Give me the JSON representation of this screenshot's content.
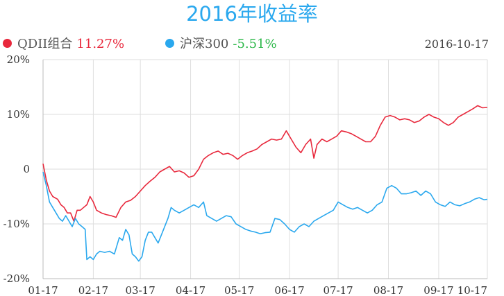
{
  "title": "2016年收益率",
  "date": "2016-10-17",
  "legend": {
    "qdii": {
      "name": "QDII组合",
      "value": "11.27%",
      "color": "#e8283c"
    },
    "hs300": {
      "name": "沪深300",
      "value": "-5.51%",
      "color": "#2aa8ee",
      "value_color": "#2db84a"
    }
  },
  "chart_data": {
    "type": "line",
    "title": "2016年收益率",
    "x_ticks": [
      "01-17",
      "02-17",
      "03-17",
      "04-17",
      "05-17",
      "06-17",
      "07-17",
      "08-17",
      "09-17",
      "10-17"
    ],
    "y_ticks": [
      "20%",
      "10%",
      "0",
      "-10%",
      "-20%"
    ],
    "ylim": [
      -20,
      20
    ],
    "x_range_days": [
      0,
      274
    ],
    "grid": true,
    "legend_position": "top-left",
    "series": [
      {
        "name": "QDII组合",
        "color": "#e8283c",
        "points": [
          [
            0,
            1
          ],
          [
            2,
            -2
          ],
          [
            4,
            -4
          ],
          [
            6,
            -5
          ],
          [
            9,
            -5.5
          ],
          [
            11,
            -6.5
          ],
          [
            13,
            -7
          ],
          [
            15,
            -8
          ],
          [
            17,
            -8
          ],
          [
            19,
            -9.5
          ],
          [
            21,
            -7.5
          ],
          [
            23,
            -7.5
          ],
          [
            25,
            -7
          ],
          [
            27,
            -6.5
          ],
          [
            29,
            -5
          ],
          [
            31,
            -6
          ],
          [
            33,
            -7.5
          ],
          [
            36,
            -8
          ],
          [
            39,
            -8.3
          ],
          [
            42,
            -8.5
          ],
          [
            45,
            -8.8
          ],
          [
            48,
            -7
          ],
          [
            51,
            -6
          ],
          [
            54,
            -5.7
          ],
          [
            57,
            -5
          ],
          [
            60,
            -4
          ],
          [
            63,
            -3
          ],
          [
            66,
            -2.2
          ],
          [
            69,
            -1.5
          ],
          [
            72,
            -0.5
          ],
          [
            75,
            0
          ],
          [
            78,
            0.5
          ],
          [
            81,
            -0.5
          ],
          [
            84,
            -0.3
          ],
          [
            87,
            -0.7
          ],
          [
            90,
            -1.5
          ],
          [
            93,
            -1.2
          ],
          [
            96,
            0
          ],
          [
            99,
            1.8
          ],
          [
            102,
            2.5
          ],
          [
            105,
            3
          ],
          [
            108,
            3.3
          ],
          [
            111,
            2.7
          ],
          [
            114,
            2.9
          ],
          [
            117,
            2.5
          ],
          [
            120,
            1.8
          ],
          [
            123,
            2.5
          ],
          [
            126,
            3
          ],
          [
            129,
            3.3
          ],
          [
            132,
            3.7
          ],
          [
            135,
            4.5
          ],
          [
            138,
            5
          ],
          [
            141,
            5.5
          ],
          [
            144,
            5.3
          ],
          [
            147,
            5.5
          ],
          [
            150,
            7
          ],
          [
            153,
            5.5
          ],
          [
            156,
            4
          ],
          [
            159,
            3
          ],
          [
            162,
            4.5
          ],
          [
            165,
            5.5
          ],
          [
            167,
            2
          ],
          [
            169,
            4.5
          ],
          [
            172,
            5.5
          ],
          [
            175,
            5
          ],
          [
            178,
            5.5
          ],
          [
            181,
            6
          ],
          [
            184,
            7
          ],
          [
            187,
            6.8
          ],
          [
            190,
            6.5
          ],
          [
            193,
            6
          ],
          [
            196,
            5.5
          ],
          [
            199,
            5
          ],
          [
            202,
            5
          ],
          [
            205,
            6
          ],
          [
            208,
            8
          ],
          [
            211,
            9.5
          ],
          [
            214,
            9.8
          ],
          [
            217,
            9.5
          ],
          [
            220,
            9
          ],
          [
            223,
            9.2
          ],
          [
            226,
            9
          ],
          [
            229,
            8.5
          ],
          [
            232,
            8.8
          ],
          [
            235,
            9.5
          ],
          [
            238,
            10
          ],
          [
            241,
            9.5
          ],
          [
            244,
            9.2
          ],
          [
            247,
            8.5
          ],
          [
            250,
            8
          ],
          [
            253,
            8.5
          ],
          [
            256,
            9.5
          ],
          [
            259,
            10
          ],
          [
            262,
            10.5
          ],
          [
            265,
            11
          ],
          [
            268,
            11.6
          ],
          [
            271,
            11.2
          ],
          [
            274,
            11.27
          ]
        ]
      },
      {
        "name": "沪深300",
        "color": "#2aa8ee",
        "points": [
          [
            0,
            -0.5
          ],
          [
            2,
            -3
          ],
          [
            4,
            -6
          ],
          [
            6,
            -7
          ],
          [
            8,
            -8
          ],
          [
            10,
            -9
          ],
          [
            12,
            -9.5
          ],
          [
            14,
            -8.5
          ],
          [
            16,
            -9.5
          ],
          [
            18,
            -10.5
          ],
          [
            20,
            -9
          ],
          [
            22,
            -10
          ],
          [
            24,
            -10.5
          ],
          [
            26,
            -11
          ],
          [
            27,
            -16.5
          ],
          [
            29,
            -16
          ],
          [
            31,
            -16.5
          ],
          [
            33,
            -15.5
          ],
          [
            35,
            -15
          ],
          [
            38,
            -15.2
          ],
          [
            41,
            -15
          ],
          [
            44,
            -15.5
          ],
          [
            47,
            -12.5
          ],
          [
            49,
            -13
          ],
          [
            51,
            -11
          ],
          [
            53,
            -12
          ],
          [
            55,
            -15.5
          ],
          [
            57,
            -16
          ],
          [
            59,
            -16.8
          ],
          [
            61,
            -16
          ],
          [
            63,
            -13
          ],
          [
            65,
            -11.5
          ],
          [
            67,
            -11.5
          ],
          [
            69,
            -12.5
          ],
          [
            71,
            -13.5
          ],
          [
            73,
            -12
          ],
          [
            75,
            -10.5
          ],
          [
            77,
            -9
          ],
          [
            79,
            -7
          ],
          [
            81,
            -7.5
          ],
          [
            84,
            -8
          ],
          [
            87,
            -7.5
          ],
          [
            90,
            -7
          ],
          [
            93,
            -6.5
          ],
          [
            96,
            -7
          ],
          [
            99,
            -6
          ],
          [
            101,
            -8.5
          ],
          [
            104,
            -9
          ],
          [
            107,
            -9.5
          ],
          [
            110,
            -9
          ],
          [
            113,
            -8.5
          ],
          [
            116,
            -8.7
          ],
          [
            119,
            -10
          ],
          [
            122,
            -10.5
          ],
          [
            125,
            -11
          ],
          [
            128,
            -11.3
          ],
          [
            131,
            -11.5
          ],
          [
            134,
            -11.8
          ],
          [
            137,
            -11.6
          ],
          [
            140,
            -11.5
          ],
          [
            143,
            -9
          ],
          [
            146,
            -9.2
          ],
          [
            149,
            -10
          ],
          [
            152,
            -11
          ],
          [
            155,
            -11.5
          ],
          [
            158,
            -10.5
          ],
          [
            161,
            -10
          ],
          [
            164,
            -10.5
          ],
          [
            167,
            -9.5
          ],
          [
            170,
            -9
          ],
          [
            173,
            -8.5
          ],
          [
            176,
            -8
          ],
          [
            179,
            -7.5
          ],
          [
            182,
            -6
          ],
          [
            185,
            -6.5
          ],
          [
            188,
            -7
          ],
          [
            191,
            -7.3
          ],
          [
            194,
            -7
          ],
          [
            197,
            -7.5
          ],
          [
            200,
            -8
          ],
          [
            203,
            -7.5
          ],
          [
            206,
            -6.5
          ],
          [
            209,
            -6
          ],
          [
            212,
            -3.5
          ],
          [
            215,
            -3
          ],
          [
            218,
            -3.5
          ],
          [
            221,
            -4.5
          ],
          [
            224,
            -4.5
          ],
          [
            227,
            -4.3
          ],
          [
            230,
            -4
          ],
          [
            233,
            -4.8
          ],
          [
            236,
            -4
          ],
          [
            239,
            -4.5
          ],
          [
            242,
            -6
          ],
          [
            245,
            -6.5
          ],
          [
            248,
            -6.8
          ],
          [
            251,
            -6
          ],
          [
            254,
            -6.5
          ],
          [
            257,
            -6.7
          ],
          [
            260,
            -6.3
          ],
          [
            263,
            -6
          ],
          [
            266,
            -5.5
          ],
          [
            269,
            -5.2
          ],
          [
            272,
            -5.6
          ],
          [
            274,
            -5.51
          ]
        ]
      }
    ]
  }
}
